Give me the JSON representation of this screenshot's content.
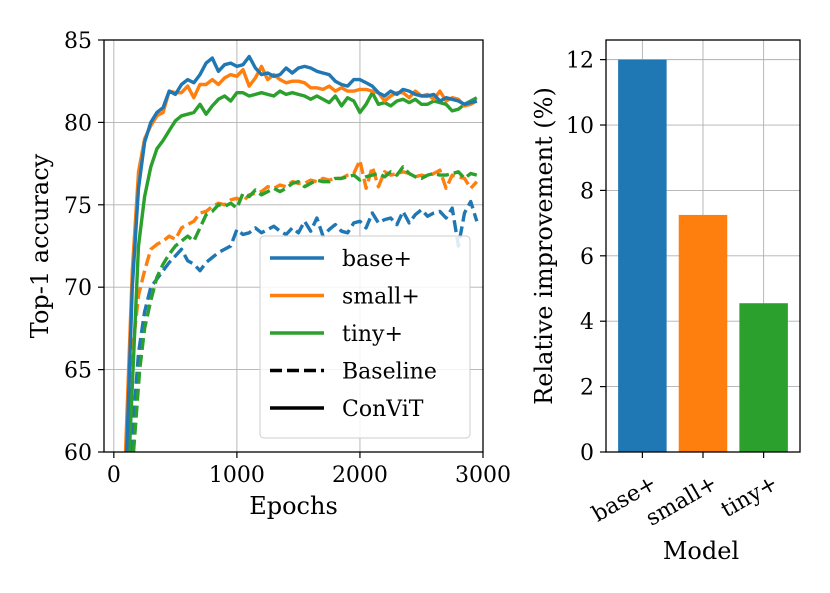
{
  "chart_data": [
    {
      "type": "line",
      "xlabel": "Epochs",
      "ylabel": "Top-1 accuracy",
      "xlim": [
        -80,
        3000
      ],
      "ylim": [
        60,
        85
      ],
      "xticks": [
        0,
        1000,
        2000,
        3000
      ],
      "yticks": [
        60,
        65,
        70,
        75,
        80,
        85
      ],
      "grid": true,
      "legend": {
        "location": "lower-right",
        "entries": [
          {
            "label": "base+",
            "color": "#1f77b4",
            "style": "solid"
          },
          {
            "label": "small+",
            "color": "#ff7f0e",
            "style": "solid"
          },
          {
            "label": "tiny+",
            "color": "#2ca02c",
            "style": "solid"
          },
          {
            "label": "Baseline",
            "color": "#000000",
            "style": "dashed"
          },
          {
            "label": "ConViT",
            "color": "#000000",
            "style": "solid"
          }
        ]
      },
      "series": [
        {
          "name": "base+ ConViT",
          "color": "#1f77b4",
          "style": "solid",
          "x": [
            100,
            150,
            200,
            250,
            300,
            350,
            400,
            450,
            500,
            550,
            600,
            650,
            700,
            750,
            800,
            850,
            900,
            950,
            1000,
            1050,
            1100,
            1150,
            1200,
            1250,
            1300,
            1350,
            1400,
            1450,
            1500,
            1550,
            1600,
            1650,
            1700,
            1750,
            1800,
            1850,
            1900,
            1950,
            2000,
            2050,
            2100,
            2150,
            2200,
            2250,
            2300,
            2350,
            2400,
            2450,
            2500,
            2550,
            2600,
            2650,
            2700,
            2750,
            2800,
            2850,
            2900,
            2950
          ],
          "y": [
            59,
            70,
            76,
            78.8,
            80.0,
            80.6,
            80.9,
            81.9,
            81.7,
            82.3,
            82.6,
            82.4,
            82.9,
            83.6,
            83.9,
            83.1,
            83.5,
            83.6,
            83.4,
            83.5,
            84.0,
            83.3,
            82.9,
            83.0,
            82.8,
            82.9,
            83.3,
            83.0,
            83.3,
            83.4,
            83.3,
            83.1,
            83.0,
            82.9,
            82.5,
            82.3,
            82.2,
            82.6,
            82.6,
            82.4,
            82.2,
            81.8,
            81.6,
            81.9,
            81.7,
            82.0,
            81.9,
            81.7,
            81.6,
            81.6,
            81.7,
            81.3,
            81.5,
            81.4,
            81.3,
            81.1,
            81.2,
            81.3
          ]
        },
        {
          "name": "small+ ConViT",
          "color": "#ff7f0e",
          "style": "solid",
          "x": [
            90,
            150,
            200,
            250,
            300,
            350,
            400,
            450,
            500,
            550,
            600,
            650,
            700,
            750,
            800,
            850,
            900,
            950,
            1000,
            1050,
            1100,
            1150,
            1200,
            1250,
            1300,
            1350,
            1400,
            1450,
            1500,
            1550,
            1600,
            1650,
            1700,
            1750,
            1800,
            1850,
            1900,
            1950,
            2000,
            2050,
            2100,
            2150,
            2200,
            2250,
            2300,
            2350,
            2400,
            2450,
            2500,
            2550,
            2600,
            2650,
            2700,
            2750,
            2800,
            2850,
            2900,
            2950
          ],
          "y": [
            59,
            71,
            77,
            79,
            79.8,
            80.4,
            80.6,
            81.9,
            81.8,
            81.8,
            82.2,
            81.5,
            82.3,
            82.3,
            82.6,
            82.3,
            82.7,
            82.9,
            82.8,
            83.2,
            82.2,
            82.7,
            83.4,
            82.6,
            82.9,
            82.6,
            82.4,
            82.5,
            82.5,
            82.4,
            82.1,
            82.1,
            82.0,
            82.2,
            81.9,
            82.1,
            81.9,
            81.9,
            82.0,
            82.0,
            81.9,
            81.8,
            81.3,
            81.6,
            81.8,
            81.8,
            81.5,
            81.9,
            81.6,
            81.7,
            81.4,
            81.9,
            81.3,
            81.5,
            81.4,
            81.0,
            81.1,
            81.3
          ]
        },
        {
          "name": "tiny+ ConViT",
          "color": "#2ca02c",
          "style": "solid",
          "x": [
            120,
            150,
            200,
            250,
            300,
            350,
            400,
            450,
            500,
            550,
            600,
            650,
            700,
            750,
            800,
            850,
            900,
            950,
            1000,
            1050,
            1100,
            1150,
            1200,
            1250,
            1300,
            1350,
            1400,
            1450,
            1500,
            1550,
            1600,
            1650,
            1700,
            1750,
            1800,
            1850,
            1900,
            1950,
            2000,
            2050,
            2100,
            2150,
            2200,
            2250,
            2300,
            2350,
            2400,
            2450,
            2500,
            2550,
            2600,
            2650,
            2700,
            2750,
            2800,
            2850,
            2900,
            2950
          ],
          "y": [
            59,
            64,
            72.5,
            75.5,
            77.3,
            78.4,
            78.9,
            79.5,
            80.1,
            80.4,
            80.5,
            80.6,
            81.1,
            80.5,
            81.0,
            81.4,
            81.6,
            81.3,
            81.8,
            81.8,
            81.6,
            81.7,
            81.8,
            81.7,
            81.6,
            81.9,
            81.7,
            81.8,
            81.7,
            81.6,
            81.4,
            81.6,
            81.4,
            81.2,
            81.6,
            81.0,
            81.5,
            81.3,
            80.6,
            81.1,
            81.8,
            81.1,
            81.2,
            81.0,
            81.3,
            81.4,
            81.2,
            81.4,
            81.1,
            81.1,
            81.3,
            81.2,
            81.1,
            80.7,
            80.8,
            81.1,
            81.3,
            81.5
          ]
        },
        {
          "name": "base+ Baseline",
          "color": "#1f77b4",
          "style": "dashed",
          "x": [
            130,
            170,
            200,
            250,
            300,
            350,
            400,
            450,
            500,
            550,
            600,
            650,
            700,
            750,
            800,
            850,
            900,
            950,
            1000,
            1050,
            1100,
            1150,
            1200,
            1250,
            1300,
            1350,
            1400,
            1450,
            1500,
            1550,
            1600,
            1650,
            1700,
            1750,
            1800,
            1850,
            1900,
            1950,
            2000,
            2050,
            2100,
            2150,
            2200,
            2250,
            2300,
            2350,
            2400,
            2450,
            2500,
            2550,
            2600,
            2650,
            2700,
            2750,
            2800,
            2850,
            2900,
            2950
          ],
          "y": [
            59,
            63,
            66,
            68.5,
            70,
            70.5,
            71.0,
            71.5,
            71.9,
            72.3,
            71.6,
            71.4,
            71.0,
            71.5,
            71.8,
            72.1,
            72.3,
            72.5,
            73.5,
            73.2,
            73.3,
            73.6,
            73.3,
            73.5,
            73.7,
            73.4,
            73.2,
            73.6,
            73.3,
            74.0,
            73.4,
            74.2,
            73.1,
            73.5,
            73.8,
            73.4,
            73.3,
            73.9,
            74.0,
            73.6,
            74.5,
            73.9,
            74.1,
            74.2,
            73.8,
            74.6,
            73.9,
            74.4,
            74.7,
            74.3,
            74.5,
            74.6,
            74.2,
            74.8,
            72.5,
            74.5,
            75.2,
            74.0
          ]
        },
        {
          "name": "small+ Baseline",
          "color": "#ff7f0e",
          "style": "dashed",
          "x": [
            110,
            150,
            200,
            250,
            300,
            350,
            400,
            450,
            500,
            550,
            600,
            650,
            700,
            750,
            800,
            850,
            900,
            950,
            1000,
            1050,
            1100,
            1150,
            1200,
            1250,
            1300,
            1350,
            1400,
            1450,
            1500,
            1550,
            1600,
            1650,
            1700,
            1750,
            1800,
            1850,
            1900,
            1950,
            2000,
            2050,
            2100,
            2150,
            2200,
            2250,
            2300,
            2350,
            2400,
            2450,
            2500,
            2550,
            2600,
            2650,
            2700,
            2750,
            2800,
            2850,
            2900,
            2950
          ],
          "y": [
            59,
            66,
            69.5,
            71,
            72.3,
            72.6,
            72.8,
            73.1,
            72.9,
            73.6,
            73.8,
            74.0,
            74.5,
            74.6,
            74.9,
            75.1,
            75.0,
            75.3,
            75.4,
            75.2,
            75.6,
            75.7,
            75.8,
            76.1,
            76.0,
            76.2,
            76.1,
            76.4,
            76.3,
            76.3,
            76.5,
            76.4,
            76.6,
            76.5,
            76.6,
            76.6,
            76.8,
            76.9,
            77.7,
            76.0,
            77.3,
            76.1,
            77.0,
            76.8,
            76.9,
            77.0,
            76.9,
            76.7,
            76.8,
            76.7,
            76.9,
            77.1,
            76.0,
            76.8,
            76.7,
            76.6,
            76.0,
            76.4
          ]
        },
        {
          "name": "tiny+ Baseline",
          "color": "#2ca02c",
          "style": "dashed",
          "x": [
            150,
            180,
            210,
            250,
            300,
            350,
            400,
            450,
            500,
            550,
            600,
            650,
            700,
            750,
            800,
            850,
            900,
            950,
            1000,
            1050,
            1100,
            1150,
            1200,
            1250,
            1300,
            1350,
            1400,
            1450,
            1500,
            1550,
            1600,
            1650,
            1700,
            1750,
            1800,
            1850,
            1900,
            1950,
            2000,
            2050,
            2100,
            2150,
            2200,
            2250,
            2300,
            2350,
            2400,
            2450,
            2500,
            2550,
            2600,
            2650,
            2700,
            2750,
            2800,
            2850,
            2900,
            2950
          ],
          "y": [
            59,
            62,
            65,
            67.5,
            69.2,
            70.6,
            71.4,
            72.0,
            72.5,
            72.8,
            73.1,
            72.8,
            73.6,
            74.4,
            74.6,
            75.0,
            74.9,
            75.1,
            74.8,
            75.7,
            75.5,
            75.9,
            75.6,
            75.8,
            76.0,
            75.8,
            76.0,
            76.3,
            76.4,
            76.1,
            76.3,
            76.5,
            76.4,
            76.4,
            76.6,
            76.6,
            76.7,
            76.8,
            76.5,
            76.7,
            76.8,
            76.9,
            76.7,
            77.0,
            76.8,
            77.3,
            76.9,
            76.7,
            76.6,
            76.8,
            76.9,
            76.8,
            76.8,
            76.9,
            77.0,
            76.6,
            76.9,
            76.8
          ]
        }
      ]
    },
    {
      "type": "bar",
      "xlabel": "Model",
      "ylabel": "Relative improvement (%)",
      "categories": [
        "base+",
        "small+",
        "tiny+"
      ],
      "values": [
        12.0,
        7.25,
        4.55
      ],
      "colors": [
        "#1f77b4",
        "#ff7f0e",
        "#2ca02c"
      ],
      "ylim": [
        0,
        12.6
      ],
      "yticks": [
        0,
        2,
        4,
        6,
        8,
        10,
        12
      ],
      "tick_label_rotation": 30,
      "grid": true
    }
  ]
}
